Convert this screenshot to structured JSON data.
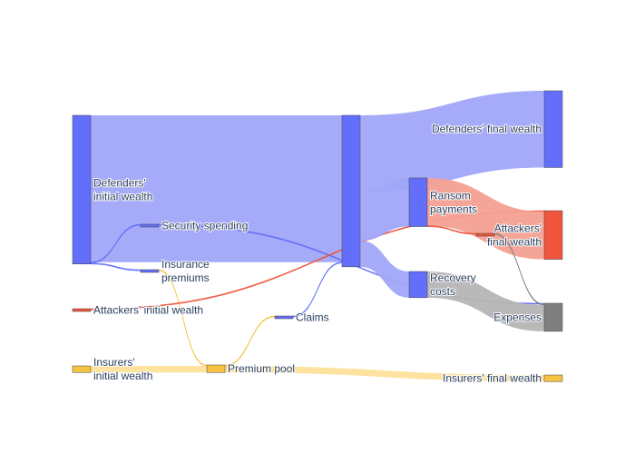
{
  "chart_data": {
    "type": "sankey",
    "nodes": [
      {
        "id": "defenders_initial",
        "label": [
          "Defenders'",
          "initial wealth"
        ],
        "color": "#636efa"
      },
      {
        "id": "security_spending",
        "label": [
          "Security spending"
        ],
        "color": "#636efa"
      },
      {
        "id": "insurance_premiums",
        "label": [
          "Insurance",
          "premiums"
        ],
        "color": "#636efa"
      },
      {
        "id": "attackers_initial",
        "label": [
          "Attackers' initial wealth"
        ],
        "color": "#ef553b"
      },
      {
        "id": "insurers_initial",
        "label": [
          "Insurers'",
          "initial wealth"
        ],
        "color": "#f5c242"
      },
      {
        "id": "premium_pool",
        "label": [
          "Premium pool"
        ],
        "color": "#f5c242"
      },
      {
        "id": "claims",
        "label": [
          "Claims"
        ],
        "color": "#636efa"
      },
      {
        "id": "defender_hub",
        "label": [],
        "color": "#636efa"
      },
      {
        "id": "ransom_payments",
        "label": [
          "Ransom",
          "payments"
        ],
        "color": "#636efa"
      },
      {
        "id": "recovery_costs",
        "label": [
          "Recovery",
          "costs"
        ],
        "color": "#636efa"
      },
      {
        "id": "attacker_hub",
        "label": [],
        "color": "#ef553b"
      },
      {
        "id": "defenders_final",
        "label": [
          "Defenders' final wealth"
        ],
        "color": "#636efa"
      },
      {
        "id": "attackers_final",
        "label": [
          "Attackers'",
          "final wealth"
        ],
        "color": "#ef553b"
      },
      {
        "id": "expenses",
        "label": [
          "Expenses"
        ],
        "color": "#7f7f7f"
      },
      {
        "id": "insurers_final",
        "label": [
          "Insurers' final wealth"
        ],
        "color": "#f5c242"
      }
    ],
    "links": [
      {
        "source": "defenders_initial",
        "target": "defender_hub",
        "value": 157,
        "color": "#a0a6f8"
      },
      {
        "source": "defenders_initial",
        "target": "security_spending",
        "value": 1,
        "color": "#636efa"
      },
      {
        "source": "defenders_initial",
        "target": "insurance_premiums",
        "value": 1,
        "color": "#636efa"
      },
      {
        "source": "security_spending",
        "target": "expenses",
        "value": 1,
        "color": "#636efa"
      },
      {
        "source": "insurance_premiums",
        "target": "premium_pool",
        "value": 1,
        "color": "#f5c242"
      },
      {
        "source": "insurers_initial",
        "target": "premium_pool",
        "value": 7,
        "color": "#fde29a"
      },
      {
        "source": "premium_pool",
        "target": "claims",
        "value": 1,
        "color": "#f5c242"
      },
      {
        "source": "premium_pool",
        "target": "insurers_final",
        "value": 7,
        "color": "#fde29a"
      },
      {
        "source": "claims",
        "target": "defender_hub",
        "value": 1,
        "color": "#636efa"
      },
      {
        "source": "attackers_initial",
        "target": "attackers_final",
        "value": 1,
        "color": "#ef553b"
      },
      {
        "source": "defender_hub",
        "target": "defenders_final",
        "value": 82,
        "color": "#a0a6f8"
      },
      {
        "source": "defender_hub",
        "target": "ransom_payments",
        "value": 52,
        "color": "#a0a6f8"
      },
      {
        "source": "defender_hub",
        "target": "recovery_costs",
        "value": 28,
        "color": "#a0a6f8"
      },
      {
        "source": "ransom_payments",
        "target": "attackers_final",
        "value": 51,
        "color": "#f4a091"
      },
      {
        "source": "ransom_payments",
        "target": "attacker_hub",
        "value": 1,
        "color": "#ef553b"
      },
      {
        "source": "attacker_hub",
        "target": "expenses",
        "value": 1,
        "color": "#7f7f7f"
      },
      {
        "source": "recovery_costs",
        "target": "expenses",
        "value": 28,
        "color": "#b5b5b5"
      }
    ]
  }
}
